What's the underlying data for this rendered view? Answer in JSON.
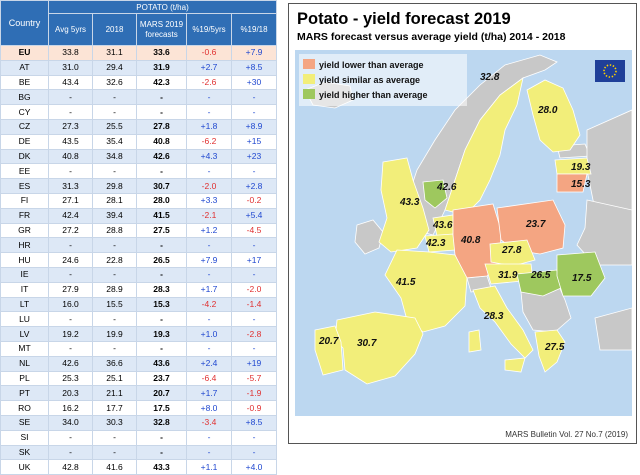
{
  "table": {
    "country_header": "Country",
    "group_header": "POTATO (t/ha)",
    "columns": [
      "Avg 5yrs",
      "2018",
      "MARS 2019 forecasts",
      "%19/5yrs",
      "%19/18"
    ],
    "rows": [
      {
        "c": "EU",
        "avg": "33.8",
        "y18": "31.1",
        "f19": "33.6",
        "p5": "-0.6",
        "p18": "+7.9"
      },
      {
        "c": "AT",
        "avg": "31.0",
        "y18": "29.4",
        "f19": "31.9",
        "p5": "+2.7",
        "p18": "+8.5"
      },
      {
        "c": "BE",
        "avg": "43.4",
        "y18": "32.6",
        "f19": "42.3",
        "p5": "-2.6",
        "p18": "+30"
      },
      {
        "c": "BG",
        "avg": "-",
        "y18": "-",
        "f19": "-",
        "p5": "-",
        "p18": "-"
      },
      {
        "c": "CY",
        "avg": "-",
        "y18": "-",
        "f19": "-",
        "p5": "-",
        "p18": "-"
      },
      {
        "c": "CZ",
        "avg": "27.3",
        "y18": "25.5",
        "f19": "27.8",
        "p5": "+1.8",
        "p18": "+8.9"
      },
      {
        "c": "DE",
        "avg": "43.5",
        "y18": "35.4",
        "f19": "40.8",
        "p5": "-6.2",
        "p18": "+15"
      },
      {
        "c": "DK",
        "avg": "40.8",
        "y18": "34.8",
        "f19": "42.6",
        "p5": "+4.3",
        "p18": "+23"
      },
      {
        "c": "EE",
        "avg": "-",
        "y18": "-",
        "f19": "-",
        "p5": "-",
        "p18": "-"
      },
      {
        "c": "ES",
        "avg": "31.3",
        "y18": "29.8",
        "f19": "30.7",
        "p5": "-2.0",
        "p18": "+2.8"
      },
      {
        "c": "FI",
        "avg": "27.1",
        "y18": "28.1",
        "f19": "28.0",
        "p5": "+3.3",
        "p18": "-0.2"
      },
      {
        "c": "FR",
        "avg": "42.4",
        "y18": "39.4",
        "f19": "41.5",
        "p5": "-2.1",
        "p18": "+5.4"
      },
      {
        "c": "GR",
        "avg": "27.2",
        "y18": "28.8",
        "f19": "27.5",
        "p5": "+1.2",
        "p18": "-4.5"
      },
      {
        "c": "HR",
        "avg": "-",
        "y18": "-",
        "f19": "-",
        "p5": "-",
        "p18": "-"
      },
      {
        "c": "HU",
        "avg": "24.6",
        "y18": "22.8",
        "f19": "26.5",
        "p5": "+7.9",
        "p18": "+17"
      },
      {
        "c": "IE",
        "avg": "-",
        "y18": "-",
        "f19": "-",
        "p5": "-",
        "p18": "-"
      },
      {
        "c": "IT",
        "avg": "27.9",
        "y18": "28.9",
        "f19": "28.3",
        "p5": "+1.7",
        "p18": "-2.0"
      },
      {
        "c": "LT",
        "avg": "16.0",
        "y18": "15.5",
        "f19": "15.3",
        "p5": "-4.2",
        "p18": "-1.4"
      },
      {
        "c": "LU",
        "avg": "-",
        "y18": "-",
        "f19": "-",
        "p5": "-",
        "p18": "-"
      },
      {
        "c": "LV",
        "avg": "19.2",
        "y18": "19.9",
        "f19": "19.3",
        "p5": "+1.0",
        "p18": "-2.8"
      },
      {
        "c": "MT",
        "avg": "-",
        "y18": "-",
        "f19": "-",
        "p5": "-",
        "p18": "-"
      },
      {
        "c": "NL",
        "avg": "42.6",
        "y18": "36.6",
        "f19": "43.6",
        "p5": "+2.4",
        "p18": "+19"
      },
      {
        "c": "PL",
        "avg": "25.3",
        "y18": "25.1",
        "f19": "23.7",
        "p5": "-6.4",
        "p18": "-5.7"
      },
      {
        "c": "PT",
        "avg": "20.3",
        "y18": "21.1",
        "f19": "20.7",
        "p5": "+1.7",
        "p18": "-1.9"
      },
      {
        "c": "RO",
        "avg": "16.2",
        "y18": "17.7",
        "f19": "17.5",
        "p5": "+8.0",
        "p18": "-0.9"
      },
      {
        "c": "SE",
        "avg": "34.0",
        "y18": "30.3",
        "f19": "32.8",
        "p5": "-3.4",
        "p18": "+8.5"
      },
      {
        "c": "SI",
        "avg": "-",
        "y18": "-",
        "f19": "-",
        "p5": "-",
        "p18": "-"
      },
      {
        "c": "SK",
        "avg": "-",
        "y18": "-",
        "f19": "-",
        "p5": "-",
        "p18": "-"
      },
      {
        "c": "UK",
        "avg": "42.8",
        "y18": "41.6",
        "f19": "43.3",
        "p5": "+1.1",
        "p18": "+4.0"
      }
    ]
  },
  "map": {
    "title": "Potato - yield forecast 2019",
    "subtitle": "MARS forecast versus average yield (t/ha) 2014 - 2018",
    "legend": [
      {
        "key": "lower",
        "label": "yield lower than average",
        "color": "#f4a582"
      },
      {
        "key": "similar",
        "label": "yield similar as average",
        "color": "#f2ee7a"
      },
      {
        "key": "higher",
        "label": "yield higher than average",
        "color": "#9ec85e"
      }
    ],
    "colors": {
      "sea": "#bcd7f0",
      "no_data": "#c8c8c8",
      "border": "#ffffff"
    },
    "values": {
      "SE": "32.8",
      "FI": "28.0",
      "LV": "19.3",
      "LT": "15.3",
      "DK": "42.6",
      "UK": "43.3",
      "NL": "43.6",
      "BE": "42.3",
      "DE": "40.8",
      "PL": "23.7",
      "CZ": "27.8",
      "FR": "41.5",
      "AT": "31.9",
      "HU": "26.5",
      "RO": "17.5",
      "IT": "28.3",
      "ES": "30.7",
      "PT": "20.7",
      "GR": "27.5"
    },
    "source": "MARS Bulletin Vol. 27 No.7 (2019)"
  }
}
